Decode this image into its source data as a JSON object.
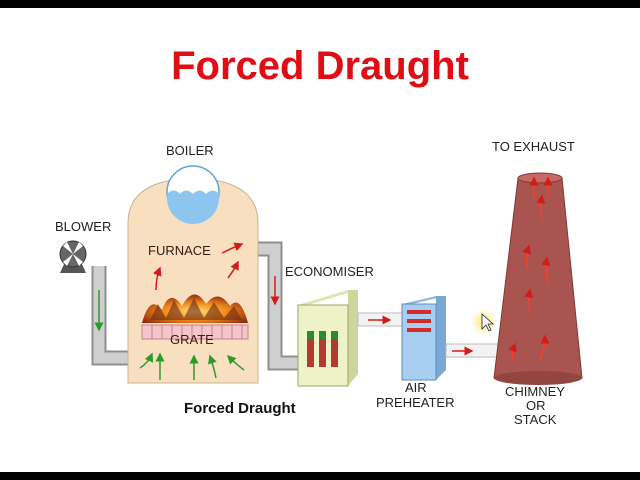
{
  "title": "Forced Draught",
  "labels": {
    "boiler": "BOILER",
    "blower": "BLOWER",
    "furnace": "FURNACE",
    "grate": "GRATE",
    "economiser": "ECONOMISER",
    "air_preheater_line1": "AIR",
    "air_preheater_line2": "PREHEATER",
    "to_exhaust": "TO EXHAUST",
    "chimney_line1": "CHIMNEY",
    "chimney_line2": "OR",
    "chimney_line3": "STACK",
    "caption": "Forced Draught"
  },
  "colors": {
    "title": "#e00d14",
    "boiler_body": "#f7dfc0",
    "pipe": "#c9c9c9",
    "chimney": "#a9544f",
    "economiser": "#eef2c7",
    "preheater": "#9fc8ee",
    "flow_arrow_red": "#d41b1b",
    "flow_arrow_green": "#2e9a2e"
  }
}
